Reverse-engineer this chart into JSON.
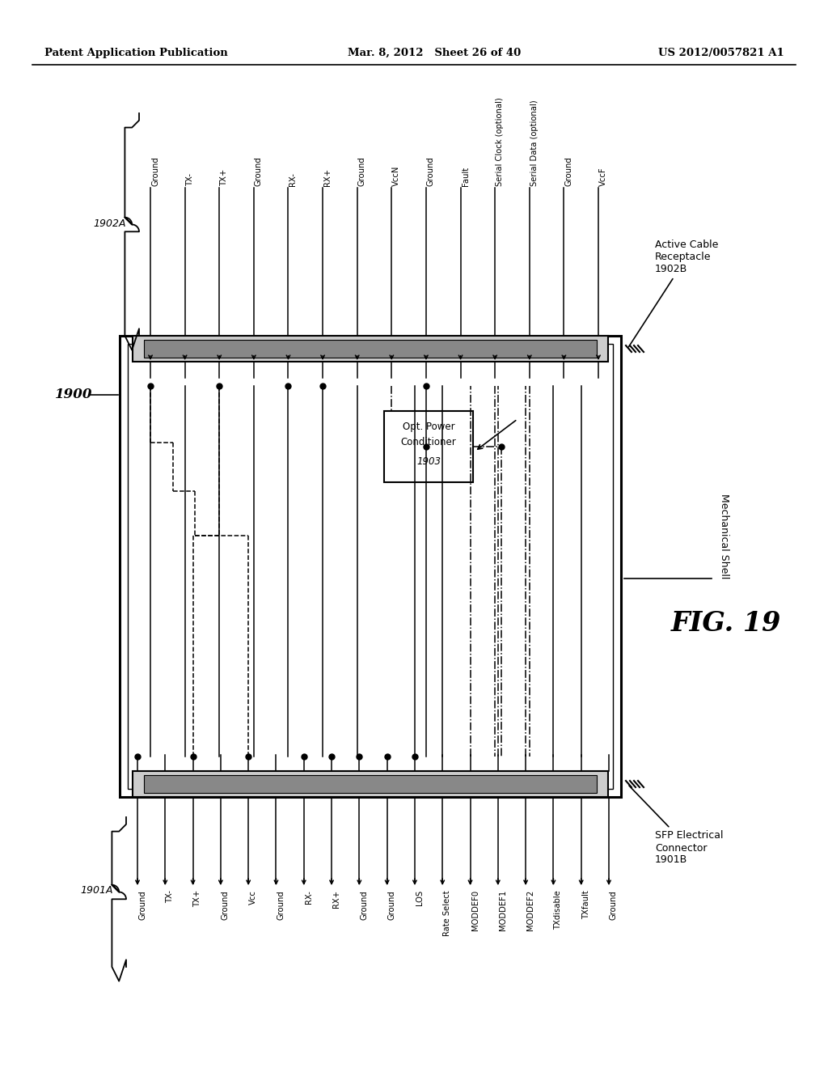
{
  "title_left": "Patent Application Publication",
  "title_center": "Mar. 8, 2012   Sheet 26 of 40",
  "title_right": "US 2012/0057821 A1",
  "fig_label": "FIG. 19",
  "fig_number": "1900",
  "top_connector_label": "1902A",
  "top_connector_name": "Active Cable\nReceptacle\n1902B",
  "bottom_connector_label": "1901A",
  "bottom_connector_name": "SFP Electrical\nConnector\n1901B",
  "box_label1": "Opt. Power",
  "box_label2": "Conditioner",
  "box_label3": "1903",
  "shell_label": "Mechanical Shell",
  "top_signals": [
    "Ground",
    "TX-",
    "TX+",
    "Ground",
    "RX-",
    "RX+",
    "Ground",
    "VccN",
    "Ground",
    "Fault",
    "Serial Clock (optional)",
    "Serial Data (optional)",
    "Ground",
    "VccF"
  ],
  "bottom_signals": [
    "Ground",
    "TX-",
    "TX+",
    "Ground",
    "Vcc",
    "Ground",
    "RX-",
    "RX+",
    "Ground",
    "Ground",
    "LOS",
    "Rate Select",
    "MODDEF0",
    "MODDEF1",
    "MODDEF2",
    "TXdisable",
    "TXfault",
    "Ground"
  ],
  "bg_color": "#ffffff",
  "lc": "#000000"
}
